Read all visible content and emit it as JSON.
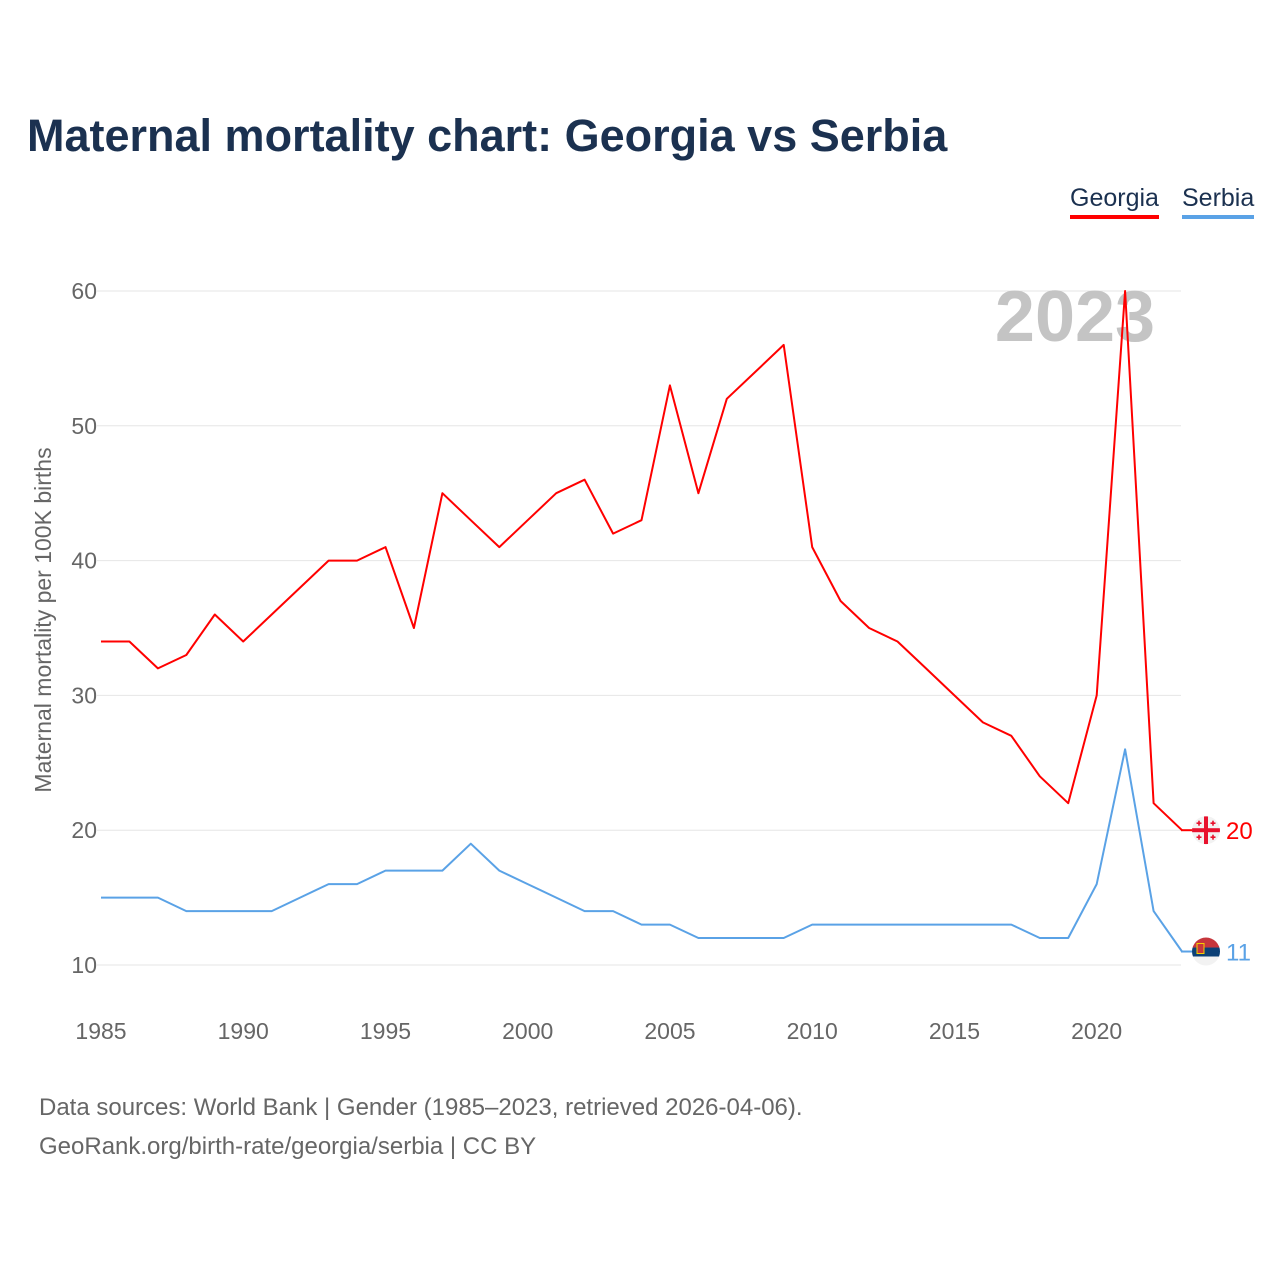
{
  "title": "Maternal mortality chart: Georgia vs Serbia",
  "footer": {
    "line1": "Data sources: World Bank | Gender (1985–2023, retrieved 2026-04-06).",
    "line2": "GeoRank.org/birth-rate/georgia/serbia | CC BY"
  },
  "chart_data": {
    "type": "line",
    "title": "Maternal mortality chart: Georgia vs Serbia",
    "xlabel": "",
    "ylabel": "Maternal mortality per 100K births",
    "year_watermark": "2023",
    "xlim": [
      1985,
      2023
    ],
    "ylim": [
      10,
      60
    ],
    "xticks": [
      1985,
      1990,
      1995,
      2000,
      2005,
      2010,
      2015,
      2020
    ],
    "yticks": [
      10,
      20,
      30,
      40,
      50,
      60
    ],
    "grid": true,
    "legend_position": "top-right",
    "x": [
      1985,
      1986,
      1987,
      1988,
      1989,
      1990,
      1991,
      1992,
      1993,
      1994,
      1995,
      1996,
      1997,
      1998,
      1999,
      2000,
      2001,
      2002,
      2003,
      2004,
      2005,
      2006,
      2007,
      2008,
      2009,
      2010,
      2011,
      2012,
      2013,
      2014,
      2015,
      2016,
      2017,
      2018,
      2019,
      2020,
      2021,
      2022,
      2023
    ],
    "series": [
      {
        "name": "Georgia",
        "color": "#ff0000",
        "end_label": "20",
        "flag": "georgia-flag",
        "values": [
          34,
          34,
          32,
          33,
          36,
          34,
          36,
          38,
          40,
          40,
          41,
          35,
          45,
          43,
          41,
          43,
          45,
          46,
          42,
          43,
          53,
          45,
          52,
          54,
          56,
          41,
          37,
          35,
          34,
          32,
          30,
          28,
          27,
          24,
          22,
          30,
          60,
          22,
          20
        ]
      },
      {
        "name": "Serbia",
        "color": "#5aa2e6",
        "end_label": "11",
        "flag": "serbia-flag",
        "values": [
          15,
          15,
          15,
          14,
          14,
          14,
          14,
          15,
          16,
          16,
          17,
          17,
          17,
          19,
          17,
          16,
          15,
          14,
          14,
          13,
          13,
          12,
          12,
          12,
          12,
          13,
          13,
          13,
          13,
          13,
          13,
          13,
          13,
          12,
          12,
          16,
          26,
          14,
          11
        ]
      }
    ]
  }
}
